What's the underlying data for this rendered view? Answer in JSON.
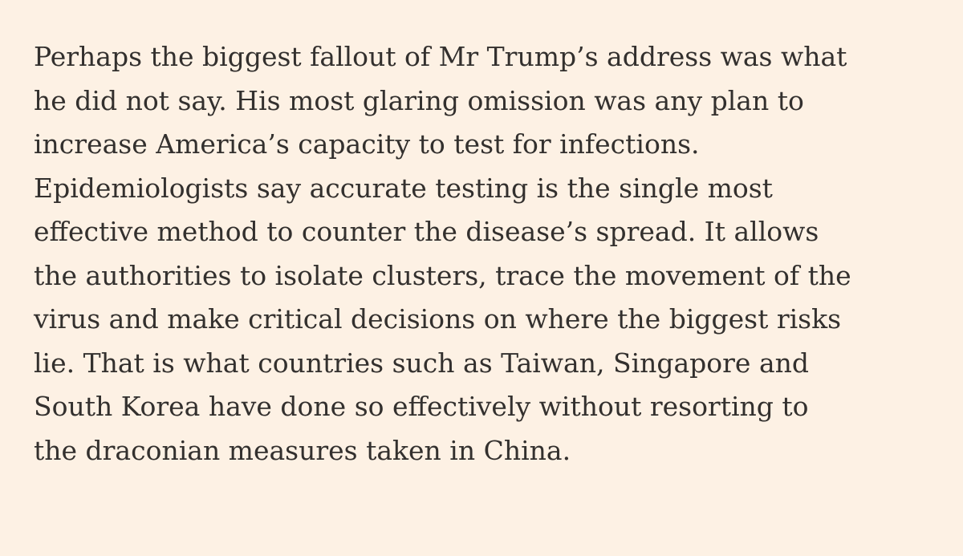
{
  "article": {
    "lines": [
      "Perhaps the biggest fallout of Mr Trump’s address was what",
      "he did not say. His most glaring omission was any plan to",
      "increase America’s capacity to test for infections.",
      "Epidemiologists say accurate testing is the single most",
      "effective method to counter the disease’s spread. It allows",
      "the authorities to isolate clusters, trace the movement of the",
      "virus and make critical decisions on where the biggest risks",
      "lie. That is what countries such as Taiwan, Singapore and",
      "South Korea have done so effectively without resorting to",
      "the draconian measures taken in China."
    ]
  },
  "colors": {
    "background": "#fdf1e4",
    "text": "#33302e"
  }
}
